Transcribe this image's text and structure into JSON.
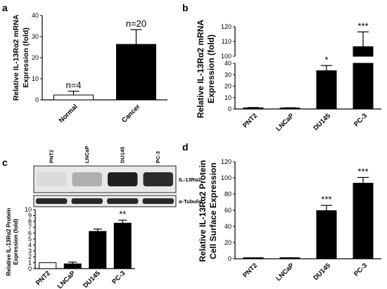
{
  "panels": {
    "a": {
      "letter": "a"
    },
    "b": {
      "letter": "b"
    },
    "c": {
      "letter": "c"
    },
    "d": {
      "letter": "d"
    }
  },
  "blot": {
    "lanes": [
      "PNT2",
      "LNCaP",
      "DU145",
      "PC-3"
    ],
    "band1": "IL-13Rα2",
    "band2": "α-Tubulin",
    "band1_intensity": [
      0.05,
      0.25,
      0.9,
      0.85
    ],
    "band2_intensity": [
      0.9,
      0.9,
      0.9,
      0.9
    ]
  },
  "chart_data": [
    {
      "id": "a",
      "type": "bar",
      "categories": [
        "Normal",
        "Cancer"
      ],
      "values": [
        2.3,
        26.3
      ],
      "errors": [
        1.8,
        7.0
      ],
      "fills": [
        "#ffffff",
        "#000000"
      ],
      "annotations": [
        "n=4",
        "n=20"
      ],
      "ylabel": "Relative IL-13Rα2 mRNA Expression (fold)",
      "yticks": [
        0,
        10,
        20,
        30,
        40
      ],
      "ylim": [
        0,
        40
      ]
    },
    {
      "id": "b",
      "type": "bar",
      "broken_axis": true,
      "categories": [
        "PNT2",
        "LNCaP",
        "DU145",
        "PC-3"
      ],
      "values": [
        1.0,
        0.8,
        33.5,
        106.5
      ],
      "errors": [
        0.3,
        0.3,
        4.5,
        10.0
      ],
      "annotations": [
        "",
        "",
        "*",
        "***"
      ],
      "ylabel": "Relative IL-13Rα2 mRNA Expression (fold)",
      "yticks_lower": [
        0,
        10,
        20,
        30,
        40
      ],
      "yticks_upper": [
        100,
        110,
        120
      ],
      "ylim_lower": [
        0,
        40
      ],
      "ylim_upper": [
        100,
        120
      ]
    },
    {
      "id": "c",
      "type": "bar",
      "categories": [
        "PNT2",
        "LNCaP",
        "DU145",
        "PC-3"
      ],
      "values": [
        1.0,
        0.8,
        6.3,
        7.7
      ],
      "errors": [
        0.0,
        0.3,
        0.4,
        0.5
      ],
      "fills": [
        "#ffffff",
        "#000000",
        "#000000",
        "#000000"
      ],
      "annotations": [
        "",
        "",
        "",
        "**"
      ],
      "ylabel": "Relative IL-13Rα2 Protein Expression (fold)",
      "yticks": [
        0,
        1,
        2,
        3,
        4,
        5,
        6,
        7,
        8,
        9,
        10
      ],
      "ylim": [
        0,
        10
      ]
    },
    {
      "id": "d",
      "type": "bar",
      "categories": [
        "PNT2",
        "LNCaP",
        "DU145",
        "PC-3"
      ],
      "values": [
        0.5,
        0.8,
        59.5,
        93.5
      ],
      "errors": [
        0.3,
        0.5,
        6.5,
        7.0
      ],
      "annotations": [
        "",
        "",
        "***",
        "***"
      ],
      "ylabel": "Relative IL-13Rα2 Protein Cell Surface Expression",
      "yticks": [
        0,
        20,
        40,
        60,
        80,
        100,
        120
      ],
      "ylim": [
        0,
        120
      ]
    }
  ]
}
